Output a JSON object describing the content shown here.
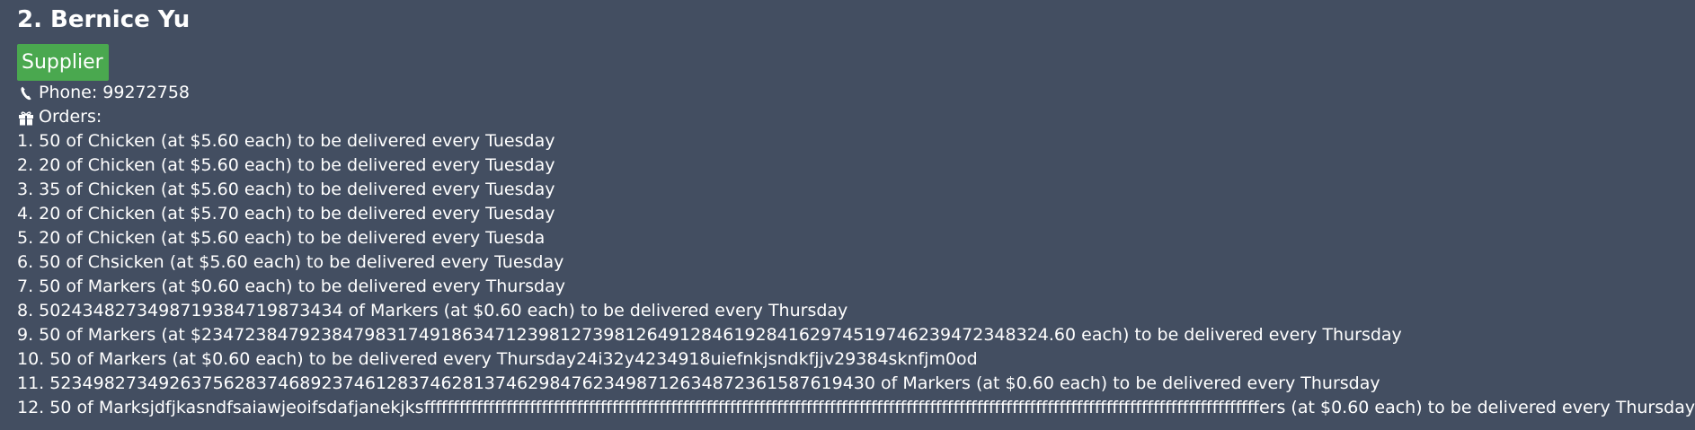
{
  "person": {
    "title": "2. Bernice Yu",
    "tags": [
      "Supplier"
    ],
    "phone": "Phone: 99272758",
    "orders_label": "Orders:",
    "orders": [
      "1. 50 of Chicken (at $5.60 each) to be delivered every Tuesday",
      "2. 20 of Chicken (at $5.60 each) to be delivered every Tuesday",
      "3. 35 of Chicken (at $5.60 each) to be delivered every Tuesday",
      "4. 20 of Chicken (at $5.70 each) to be delivered every Tuesday",
      "5. 20 of Chicken (at $5.60 each) to be delivered every Tuesda",
      "6. 50 of Chsicken (at $5.60 each) to be delivered every Tuesday",
      "7. 50 of Markers (at $0.60 each) to be delivered every Thursday",
      "8. 502434827349871938471987343​4 of Markers (at $0.60 each) to be delivered every Thursday",
      "9. 50 of Markers (at $23472384792384798317491863471239812739812649128461928416297451974623947234832​4.60 each) to be delivered every Thursday",
      "10. 50 of Markers (at $0.60 each) to be delivered every Thursday24i32y4234918uiefnkjsndkfjjv29384sknfjm0od",
      "11. 5234982734926375628374689237461283746281374629847623498712634872361587619430 of Markers (at $0.60 each) to be delivered every Thursday",
      "12. 50 of Marksjdfjkasndfsaiawjeoifsdafjanekjksffffffffffffffffffffffffffffffffffffffffffffffffffffffffffffffffffffffffffffffffffffffffffffffffffffffffffffffffffffffffffffffffffffffffffffffers (at $0.60 each) to be delivered every Thursday"
    ]
  },
  "icons": {
    "phone": "phone-icon",
    "orders": "gift-icon"
  },
  "colors": {
    "background": "#434e61",
    "tag": "#4aa84f",
    "text": "#ffffff"
  }
}
